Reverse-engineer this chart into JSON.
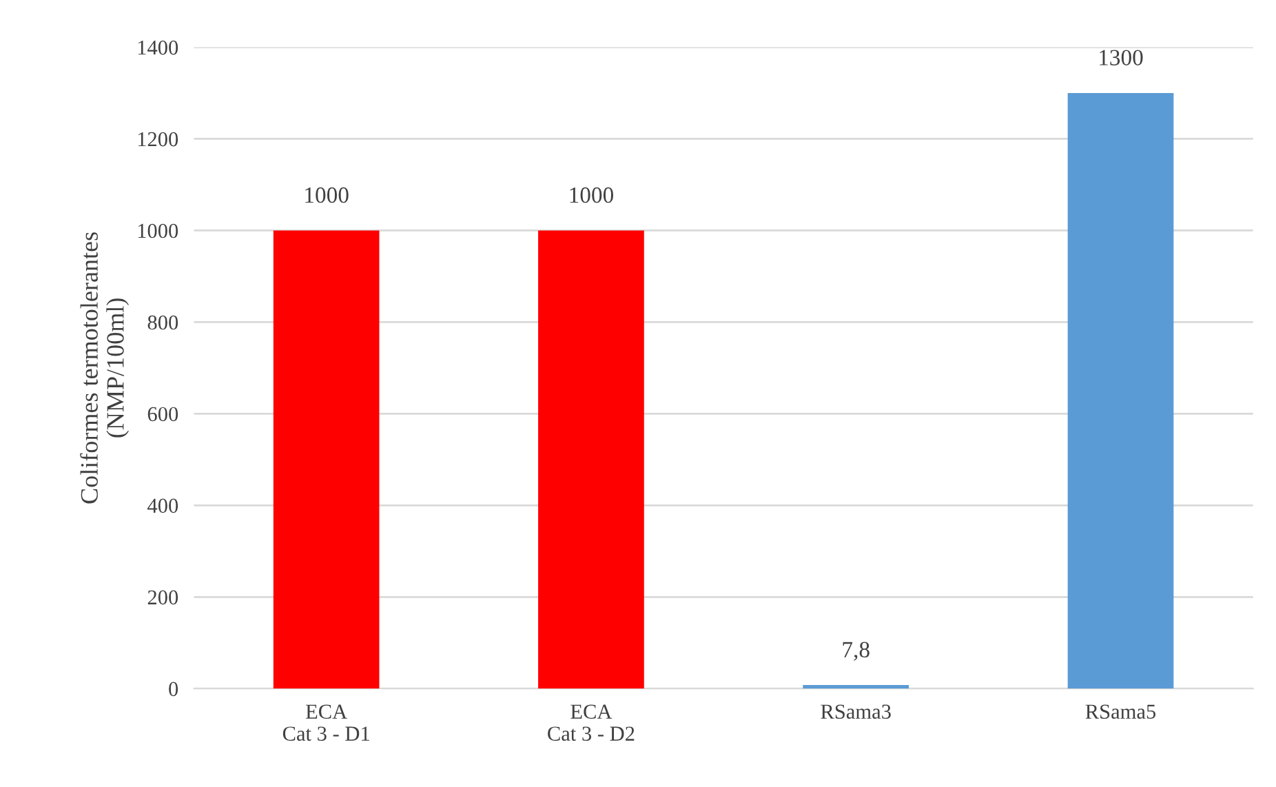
{
  "chart_data": {
    "type": "bar",
    "ylabel": "Coliformes termotolerantes\n(NMP/100ml)",
    "categories": [
      "ECA\nCat 3 - D1",
      "ECA\nCat 3 - D2",
      "RSama3",
      "RSama5"
    ],
    "values": [
      1000,
      1000,
      7.8,
      1300
    ],
    "colors": [
      "#ff0000",
      "#ff0000",
      "#5b9bd5",
      "#5b9bd5"
    ],
    "value_labels": [
      "1000",
      "1000",
      "7,8",
      "1300"
    ],
    "ylim": [
      0,
      1400
    ],
    "yticks": [
      0,
      200,
      400,
      600,
      800,
      1000,
      1200,
      1400
    ],
    "grid": "y"
  }
}
